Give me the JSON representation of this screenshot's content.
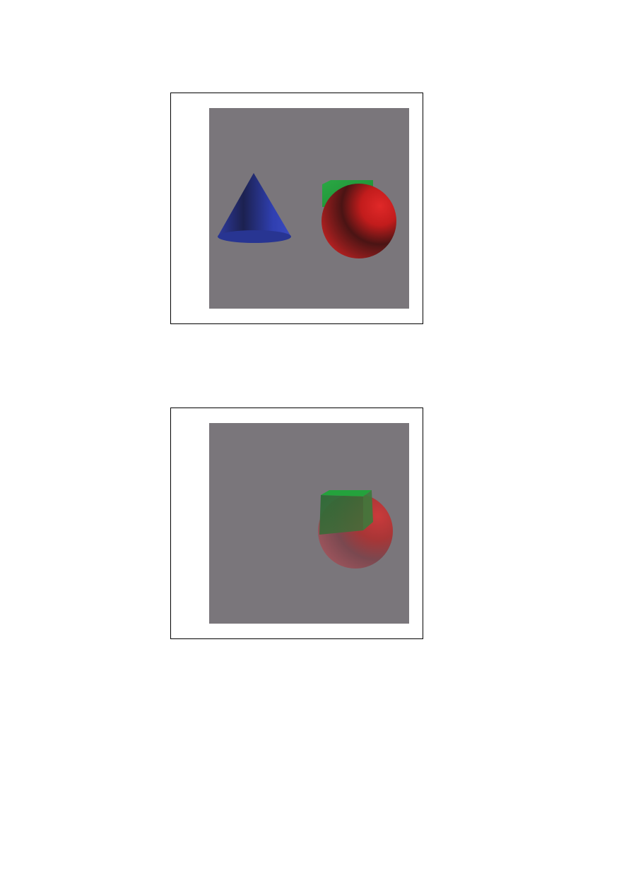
{
  "figures": [
    {
      "id": "top",
      "background_color": "#7a767b",
      "objects": [
        {
          "kind": "cone",
          "color": "#2b3aa8"
        },
        {
          "kind": "cube",
          "color": "#1f9a3a"
        },
        {
          "kind": "sphere",
          "color": "#c82020"
        }
      ]
    },
    {
      "id": "bottom",
      "background_color": "#7a767b",
      "objects": [
        {
          "kind": "cube",
          "color": "#1f9a3a"
        },
        {
          "kind": "sphere",
          "color": "#c82020",
          "translucent": true
        }
      ]
    }
  ]
}
